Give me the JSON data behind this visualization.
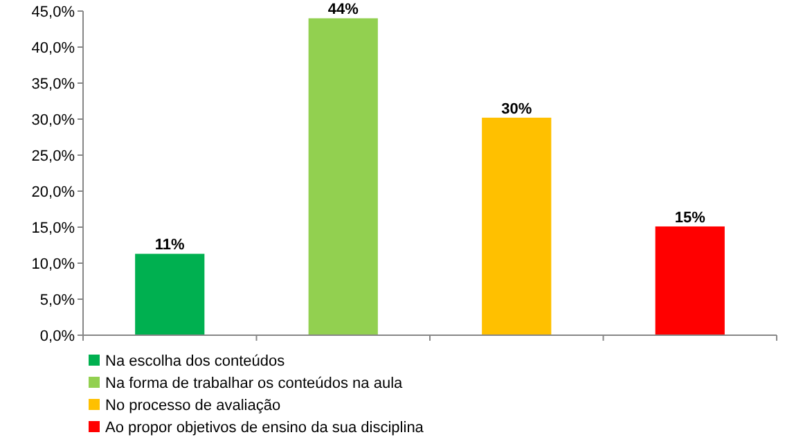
{
  "chart_data": {
    "type": "bar",
    "categories": [
      null,
      null,
      null,
      null
    ],
    "series": [
      {
        "name": "Na escolha dos conteúdos",
        "color": "#00b050",
        "values": [
          11.3,
          null,
          null,
          null
        ],
        "value_labels": [
          "11%",
          null,
          null,
          null
        ]
      },
      {
        "name": "Na forma de trabalhar os conteúdos na aula",
        "color": "#92d050",
        "values": [
          null,
          44,
          null,
          null
        ],
        "value_labels": [
          null,
          "44%",
          null,
          null
        ]
      },
      {
        "name": "No processo de avaliação",
        "color": "#ffc000",
        "values": [
          null,
          null,
          30.2,
          null
        ],
        "value_labels": [
          null,
          null,
          "30%",
          null
        ]
      },
      {
        "name": "Ao propor objetivos de ensino da sua disciplina",
        "color": "#ff0000",
        "values": [
          null,
          null,
          null,
          15.1
        ],
        "value_labels": [
          null,
          null,
          null,
          "15%"
        ]
      }
    ],
    "ylim": [
      0,
      45
    ],
    "yticks": [
      {
        "value": 0,
        "label": "0,0%"
      },
      {
        "value": 5,
        "label": "5,0%"
      },
      {
        "value": 10,
        "label": "10,0%"
      },
      {
        "value": 15,
        "label": "15,0%"
      },
      {
        "value": 20,
        "label": "20,0%"
      },
      {
        "value": 25,
        "label": "25,0%"
      },
      {
        "value": 30,
        "label": "30,0%"
      },
      {
        "value": 35,
        "label": "35,0%"
      },
      {
        "value": 40,
        "label": "40,0%"
      },
      {
        "value": 45,
        "label": "45,0%"
      }
    ],
    "legend": "bottom"
  }
}
